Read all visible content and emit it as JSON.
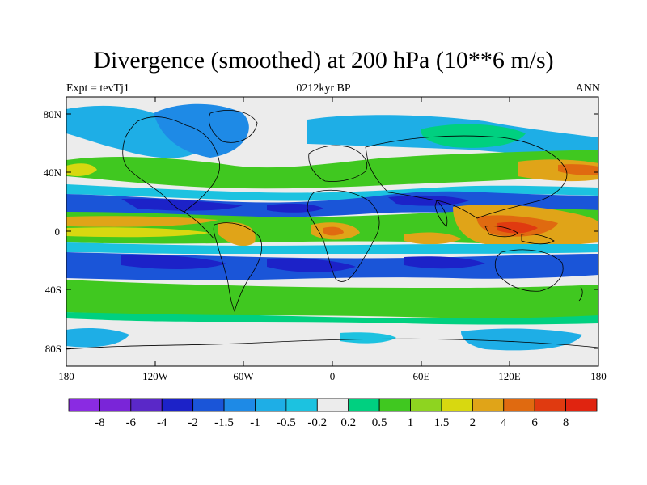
{
  "title": "Divergence (smoothed) at 200 hPa (10**6 m/s)",
  "left_label": "Expt = tevTj1",
  "center_label": "0212kyr BP",
  "right_label": "ANN",
  "lat_ticks": [
    "80N",
    "40N",
    "0",
    "40S",
    "80S"
  ],
  "lon_ticks": [
    "180",
    "120W",
    "60W",
    "0",
    "60E",
    "120E",
    "180"
  ],
  "colorbar": {
    "labels": [
      "-8",
      "-6",
      "-4",
      "-2",
      "-1.5",
      "-1",
      "-0.5",
      "-0.2",
      "0.2",
      "0.5",
      "1",
      "1.5",
      "2",
      "4",
      "6",
      "8"
    ],
    "colors": [
      "#8a2be2",
      "#7a25d8",
      "#5a28c8",
      "#1c22c8",
      "#1a55d8",
      "#1e8ae6",
      "#1eaee6",
      "#1cc2e0",
      "#ececec",
      "#00d080",
      "#40c820",
      "#8ed420",
      "#d8d810",
      "#e0a418",
      "#e06a10",
      "#e03a10",
      "#e02410"
    ]
  },
  "palette": {
    "land_gray": "#ececec",
    "deep_blue": "#1c22c8",
    "mid_blue": "#1a55d8",
    "sky_blue": "#1e8ae6",
    "cyan": "#1cc2e0",
    "green": "#40c820",
    "teal": "#00d080",
    "yellow": "#d8d810",
    "orange": "#e0a418",
    "dark_orange": "#e06a10",
    "red": "#e03a10"
  }
}
